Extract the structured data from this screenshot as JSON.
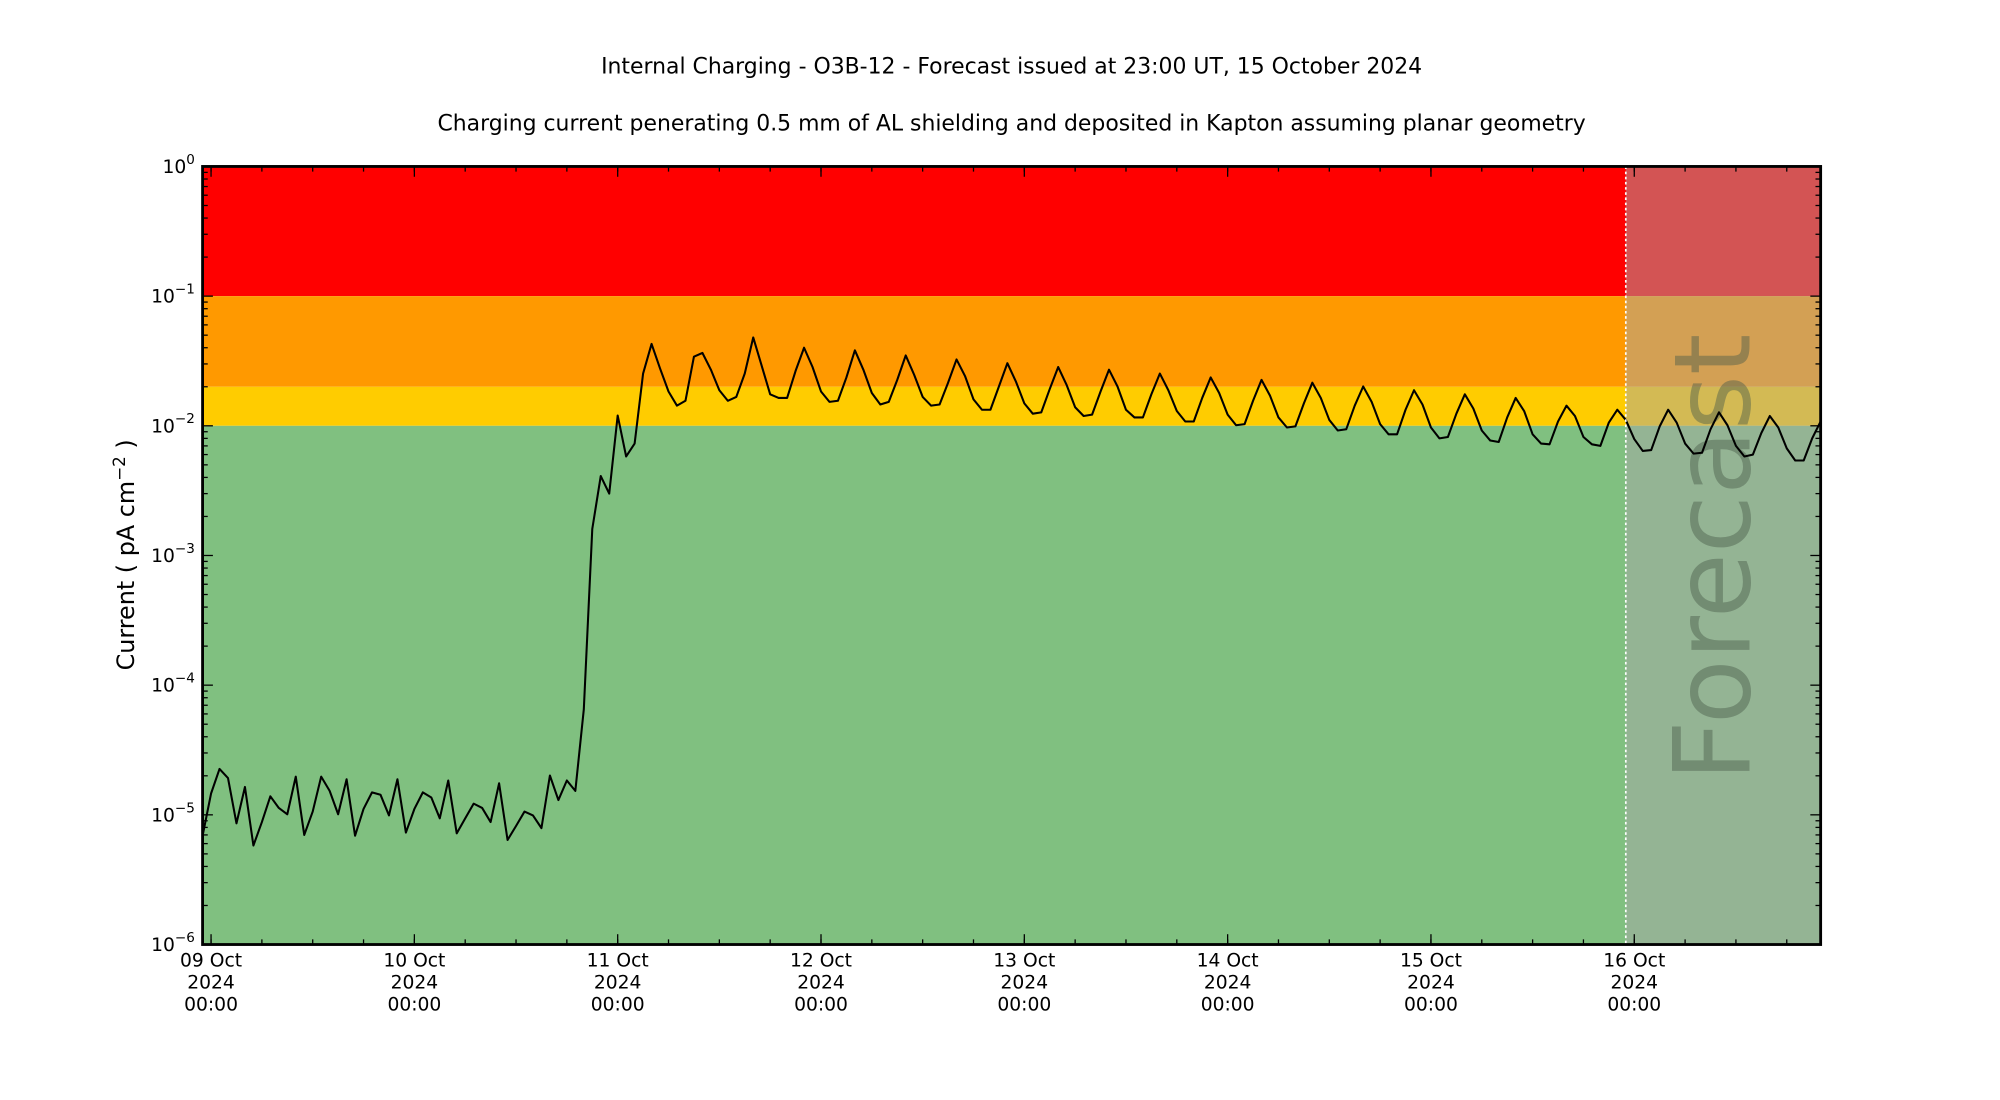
{
  "chart_data": {
    "type": "line",
    "title": "Internal Charging - O3B-12 - Forecast issued at 23:00 UT, 15 October 2024",
    "subtitle": "Charging current penerating 0.5 mm of AL shielding and deposited in Kapton assuming planar geometry",
    "ylabel": "Current ( pA cm",
    "ylabel_exp": "−2",
    "ylabel_end": " )",
    "xlabel": "",
    "y_scale": "log",
    "ylim": [
      1e-06,
      1
    ],
    "xlim": [
      "2024-10-08 23:00",
      "2024-10-16 22:00"
    ],
    "grid": false,
    "forecast_label": "Forecast",
    "forecast_start": "2024-10-15 23:00",
    "bands": [
      {
        "from": 0.1,
        "to": 1,
        "color": "#ff0000"
      },
      {
        "from": 0.02,
        "to": 0.1,
        "color": "#ff9900"
      },
      {
        "from": 0.01,
        "to": 0.02,
        "color": "#ffcc00"
      },
      {
        "from": 1e-06,
        "to": 0.01,
        "color": "#80c080"
      }
    ],
    "forecast_overlay_color": "#a8a8a8",
    "line_color": "#000000",
    "y_ticks": [
      {
        "value": 1,
        "base": "10",
        "exp": "0"
      },
      {
        "value": 0.1,
        "base": "10",
        "exp": "−1"
      },
      {
        "value": 0.01,
        "base": "10",
        "exp": "−2"
      },
      {
        "value": 0.001,
        "base": "10",
        "exp": "−3"
      },
      {
        "value": 0.0001,
        "base": "10",
        "exp": "−4"
      },
      {
        "value": 1e-05,
        "base": "10",
        "exp": "−5"
      },
      {
        "value": 1e-06,
        "base": "10",
        "exp": "−6"
      }
    ],
    "x_ticks": [
      {
        "value": "2024-10-09 00:00",
        "line1": "09 Oct",
        "line2": "2024",
        "line3": "00:00"
      },
      {
        "value": "2024-10-10 00:00",
        "line1": "10 Oct",
        "line2": "2024",
        "line3": "00:00"
      },
      {
        "value": "2024-10-11 00:00",
        "line1": "11 Oct",
        "line2": "2024",
        "line3": "00:00"
      },
      {
        "value": "2024-10-12 00:00",
        "line1": "12 Oct",
        "line2": "2024",
        "line3": "00:00"
      },
      {
        "value": "2024-10-13 00:00",
        "line1": "13 Oct",
        "line2": "2024",
        "line3": "00:00"
      },
      {
        "value": "2024-10-14 00:00",
        "line1": "14 Oct",
        "line2": "2024",
        "line3": "00:00"
      },
      {
        "value": "2024-10-15 00:00",
        "line1": "15 Oct",
        "line2": "2024",
        "line3": "00:00"
      },
      {
        "value": "2024-10-16 00:00",
        "line1": "16 Oct",
        "line2": "2024",
        "line3": "00:00"
      }
    ],
    "x": [
      "2024-10-08 23:00",
      "2024-10-09 00:00",
      "2024-10-09 01:00",
      "2024-10-09 02:00",
      "2024-10-09 03:00",
      "2024-10-09 04:00",
      "2024-10-09 05:00",
      "2024-10-09 06:00",
      "2024-10-09 07:00",
      "2024-10-09 08:00",
      "2024-10-09 09:00",
      "2024-10-09 10:00",
      "2024-10-09 11:00",
      "2024-10-09 12:00",
      "2024-10-09 13:00",
      "2024-10-09 14:00",
      "2024-10-09 15:00",
      "2024-10-09 16:00",
      "2024-10-09 17:00",
      "2024-10-09 18:00",
      "2024-10-09 19:00",
      "2024-10-09 20:00",
      "2024-10-09 21:00",
      "2024-10-09 22:00",
      "2024-10-09 23:00",
      "2024-10-10 00:00",
      "2024-10-10 01:00",
      "2024-10-10 02:00",
      "2024-10-10 03:00",
      "2024-10-10 04:00",
      "2024-10-10 05:00",
      "2024-10-10 06:00",
      "2024-10-10 07:00",
      "2024-10-10 08:00",
      "2024-10-10 09:00",
      "2024-10-10 10:00",
      "2024-10-10 11:00",
      "2024-10-10 12:00",
      "2024-10-10 13:00",
      "2024-10-10 14:00",
      "2024-10-10 15:00",
      "2024-10-10 16:00",
      "2024-10-10 17:00",
      "2024-10-10 18:00",
      "2024-10-10 19:00",
      "2024-10-10 20:00",
      "2024-10-10 21:00",
      "2024-10-10 22:00",
      "2024-10-10 23:00",
      "2024-10-11 00:00",
      "2024-10-11 01:00",
      "2024-10-11 02:00",
      "2024-10-11 03:00",
      "2024-10-11 04:00",
      "2024-10-11 05:00",
      "2024-10-11 06:00",
      "2024-10-11 07:00",
      "2024-10-11 08:00",
      "2024-10-11 09:00",
      "2024-10-11 10:00",
      "2024-10-11 11:00",
      "2024-10-11 12:00",
      "2024-10-11 13:00",
      "2024-10-11 14:00",
      "2024-10-11 15:00",
      "2024-10-11 16:00",
      "2024-10-11 17:00",
      "2024-10-11 18:00",
      "2024-10-11 19:00",
      "2024-10-11 20:00",
      "2024-10-11 21:00",
      "2024-10-11 22:00",
      "2024-10-11 23:00",
      "2024-10-12 00:00",
      "2024-10-12 01:00",
      "2024-10-12 02:00",
      "2024-10-12 03:00",
      "2024-10-12 04:00",
      "2024-10-12 05:00",
      "2024-10-12 06:00",
      "2024-10-12 07:00",
      "2024-10-12 08:00",
      "2024-10-12 09:00",
      "2024-10-12 10:00",
      "2024-10-12 11:00",
      "2024-10-12 12:00",
      "2024-10-12 13:00",
      "2024-10-12 14:00",
      "2024-10-12 15:00",
      "2024-10-12 16:00",
      "2024-10-12 17:00",
      "2024-10-12 18:00",
      "2024-10-12 19:00",
      "2024-10-12 20:00",
      "2024-10-12 21:00",
      "2024-10-12 22:00",
      "2024-10-12 23:00",
      "2024-10-13 00:00",
      "2024-10-13 01:00",
      "2024-10-13 02:00",
      "2024-10-13 03:00",
      "2024-10-13 04:00",
      "2024-10-13 05:00",
      "2024-10-13 06:00",
      "2024-10-13 07:00",
      "2024-10-13 08:00",
      "2024-10-13 09:00",
      "2024-10-13 10:00",
      "2024-10-13 11:00",
      "2024-10-13 12:00",
      "2024-10-13 13:00",
      "2024-10-13 14:00",
      "2024-10-13 15:00",
      "2024-10-13 16:00",
      "2024-10-13 17:00",
      "2024-10-13 18:00",
      "2024-10-13 19:00",
      "2024-10-13 20:00",
      "2024-10-13 21:00",
      "2024-10-13 22:00",
      "2024-10-13 23:00",
      "2024-10-14 00:00",
      "2024-10-14 01:00",
      "2024-10-14 02:00",
      "2024-10-14 03:00",
      "2024-10-14 04:00",
      "2024-10-14 05:00",
      "2024-10-14 06:00",
      "2024-10-14 07:00",
      "2024-10-14 08:00",
      "2024-10-14 09:00",
      "2024-10-14 10:00",
      "2024-10-14 11:00",
      "2024-10-14 12:00",
      "2024-10-14 13:00",
      "2024-10-14 14:00",
      "2024-10-14 15:00",
      "2024-10-14 16:00",
      "2024-10-14 17:00",
      "2024-10-14 18:00",
      "2024-10-14 19:00",
      "2024-10-14 20:00",
      "2024-10-14 21:00",
      "2024-10-14 22:00",
      "2024-10-14 23:00",
      "2024-10-15 00:00",
      "2024-10-15 01:00",
      "2024-10-15 02:00",
      "2024-10-15 03:00",
      "2024-10-15 04:00",
      "2024-10-15 05:00",
      "2024-10-15 06:00",
      "2024-10-15 07:00",
      "2024-10-15 08:00",
      "2024-10-15 09:00",
      "2024-10-15 10:00",
      "2024-10-15 11:00",
      "2024-10-15 12:00",
      "2024-10-15 13:00",
      "2024-10-15 14:00",
      "2024-10-15 15:00",
      "2024-10-15 16:00",
      "2024-10-15 17:00",
      "2024-10-15 18:00",
      "2024-10-15 19:00",
      "2024-10-15 20:00",
      "2024-10-15 21:00",
      "2024-10-15 22:00",
      "2024-10-15 23:00",
      "2024-10-16 00:00",
      "2024-10-16 01:00",
      "2024-10-16 02:00",
      "2024-10-16 03:00",
      "2024-10-16 04:00",
      "2024-10-16 05:00",
      "2024-10-16 06:00",
      "2024-10-16 07:00",
      "2024-10-16 08:00",
      "2024-10-16 09:00",
      "2024-10-16 10:00",
      "2024-10-16 11:00",
      "2024-10-16 12:00",
      "2024-10-16 13:00",
      "2024-10-16 14:00",
      "2024-10-16 15:00",
      "2024-10-16 16:00",
      "2024-10-16 17:00",
      "2024-10-16 18:00",
      "2024-10-16 19:00",
      "2024-10-16 20:00",
      "2024-10-16 21:00",
      "2024-10-16 22:00"
    ],
    "values": [
      6.9e-06,
      1.46e-05,
      2.26e-05,
      1.92e-05,
      8.6e-06,
      1.64e-05,
      5.8e-06,
      8.8e-06,
      1.39e-05,
      1.13e-05,
      1.01e-05,
      1.97e-05,
      7e-06,
      1.06e-05,
      1.97e-05,
      1.53e-05,
      1.01e-05,
      1.88e-05,
      6.9e-06,
      1.11e-05,
      1.49e-05,
      1.43e-05,
      9.9e-06,
      1.88e-05,
      7.3e-06,
      1.11e-05,
      1.49e-05,
      1.36e-05,
      9.4e-06,
      1.84e-05,
      7.2e-06,
      9.4e-06,
      1.22e-05,
      1.13e-05,
      8.8e-06,
      1.75e-05,
      6.4e-06,
      8.2e-06,
      1.06e-05,
      9.9e-06,
      7.9e-06,
      2.01e-05,
      1.3e-05,
      1.84e-05,
      1.53e-05,
      6.5e-05,
      0.0016,
      0.0041,
      0.003,
      0.012,
      0.0058,
      0.0073,
      0.0253,
      0.0428,
      0.0277,
      0.0184,
      0.0143,
      0.0156,
      0.0341,
      0.0365,
      0.0271,
      0.0188,
      0.0156,
      0.0167,
      0.0253,
      0.048,
      0.029,
      0.0175,
      0.0164,
      0.0164,
      0.0265,
      0.04,
      0.0284,
      0.0184,
      0.0153,
      0.0156,
      0.0236,
      0.0382,
      0.0271,
      0.0179,
      0.0146,
      0.0153,
      0.0226,
      0.0349,
      0.0247,
      0.0167,
      0.0143,
      0.0146,
      0.0215,
      0.0325,
      0.0242,
      0.016,
      0.0133,
      0.0133,
      0.0201,
      0.0304,
      0.022,
      0.0149,
      0.0124,
      0.0127,
      0.0192,
      0.0284,
      0.0206,
      0.0139,
      0.0119,
      0.0122,
      0.0184,
      0.0271,
      0.0201,
      0.0133,
      0.0116,
      0.0116,
      0.0175,
      0.0253,
      0.0188,
      0.013,
      0.0108,
      0.0108,
      0.0164,
      0.0236,
      0.0179,
      0.0122,
      0.0101,
      0.0103,
      0.0156,
      0.0226,
      0.0171,
      0.0116,
      0.0097,
      0.0099,
      0.0149,
      0.0215,
      0.0164,
      0.0111,
      0.0092,
      0.0094,
      0.0143,
      0.0201,
      0.0153,
      0.0103,
      0.0086,
      0.0086,
      0.0133,
      0.0188,
      0.0146,
      0.0097,
      0.008,
      0.0082,
      0.0124,
      0.0175,
      0.0136,
      0.0092,
      0.0077,
      0.0075,
      0.0116,
      0.0164,
      0.013,
      0.0086,
      0.0073,
      0.0072,
      0.0108,
      0.0143,
      0.0119,
      0.0082,
      0.0072,
      0.007,
      0.0106,
      0.0133,
      0.0111,
      0.0079,
      0.0064,
      0.0065,
      0.0099,
      0.0133,
      0.0106,
      0.0073,
      0.0061,
      0.0062,
      0.0094,
      0.0127,
      0.0101,
      0.007,
      0.0058,
      0.006,
      0.0088,
      0.0119,
      0.0097,
      0.0067,
      0.0054,
      0.0054,
      0.008,
      0.0108
    ]
  }
}
